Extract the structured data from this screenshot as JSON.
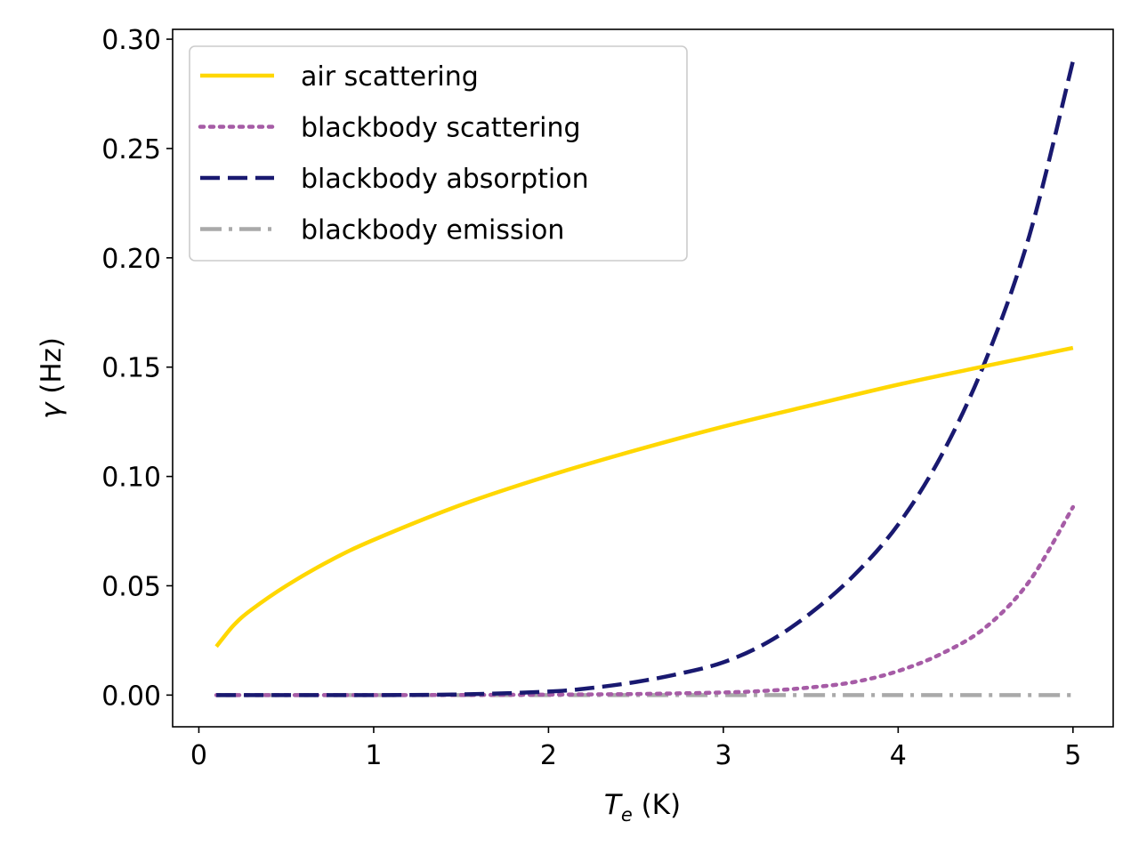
{
  "chart_data": {
    "type": "line",
    "title": "",
    "xlabel": {
      "symbol": "T",
      "subscript": "e",
      "unit": " (K)"
    },
    "ylabel": {
      "symbol": "γ",
      "unit": " (Hz)"
    },
    "xlim": [
      -0.15,
      5.23
    ],
    "ylim": [
      -0.0145,
      0.3045
    ],
    "xticks": [
      0,
      1,
      2,
      3,
      4,
      5
    ],
    "xtick_labels": [
      "0",
      "1",
      "2",
      "3",
      "4",
      "5"
    ],
    "yticks": [
      0.0,
      0.05,
      0.1,
      0.15,
      0.2,
      0.25,
      0.3
    ],
    "ytick_labels": [
      "0.00",
      "0.05",
      "0.10",
      "0.15",
      "0.20",
      "0.25",
      "0.30"
    ],
    "grid": false,
    "legend_position": "upper-left",
    "series": [
      {
        "name": "air scattering",
        "color": "#FFD700",
        "style": "solid",
        "x": [
          0.1,
          0.2,
          0.3,
          0.5,
          0.75,
          1.0,
          1.5,
          2.0,
          2.5,
          3.0,
          3.5,
          4.0,
          4.5,
          5.0
        ],
        "y": [
          0.0222,
          0.032,
          0.039,
          0.05,
          0.0615,
          0.071,
          0.087,
          0.1003,
          0.112,
          0.1228,
          0.1325,
          0.142,
          0.1505,
          0.1588
        ]
      },
      {
        "name": "blackbody scattering",
        "color": "#A65CA6",
        "style": "dotted",
        "x": [
          0.1,
          0.5,
          1.0,
          1.5,
          2.0,
          2.5,
          3.0,
          3.25,
          3.5,
          3.75,
          4.0,
          4.25,
          4.5,
          4.75,
          5.0
        ],
        "y": [
          0.0,
          0.0,
          0.0,
          5e-05,
          0.0002,
          0.0005,
          0.0012,
          0.002,
          0.0035,
          0.006,
          0.011,
          0.019,
          0.031,
          0.052,
          0.086
        ]
      },
      {
        "name": "blackbody absorption",
        "color": "#191970",
        "style": "dashed",
        "x": [
          0.1,
          0.5,
          1.0,
          1.5,
          2.0,
          2.25,
          2.5,
          2.75,
          3.0,
          3.25,
          3.5,
          3.75,
          4.0,
          4.25,
          4.5,
          4.75,
          5.0
        ],
        "y": [
          0.0,
          0.0,
          0.0,
          0.0003,
          0.0016,
          0.0033,
          0.006,
          0.0098,
          0.015,
          0.024,
          0.0375,
          0.055,
          0.078,
          0.11,
          0.153,
          0.21,
          0.29
        ]
      },
      {
        "name": "blackbody emission",
        "color": "#A9A9A9",
        "style": "dashdot",
        "x": [
          0.1,
          1.0,
          2.0,
          3.0,
          4.0,
          5.0
        ],
        "y": [
          0.0,
          0.0,
          0.0,
          0.0,
          0.0,
          0.0
        ]
      }
    ]
  }
}
